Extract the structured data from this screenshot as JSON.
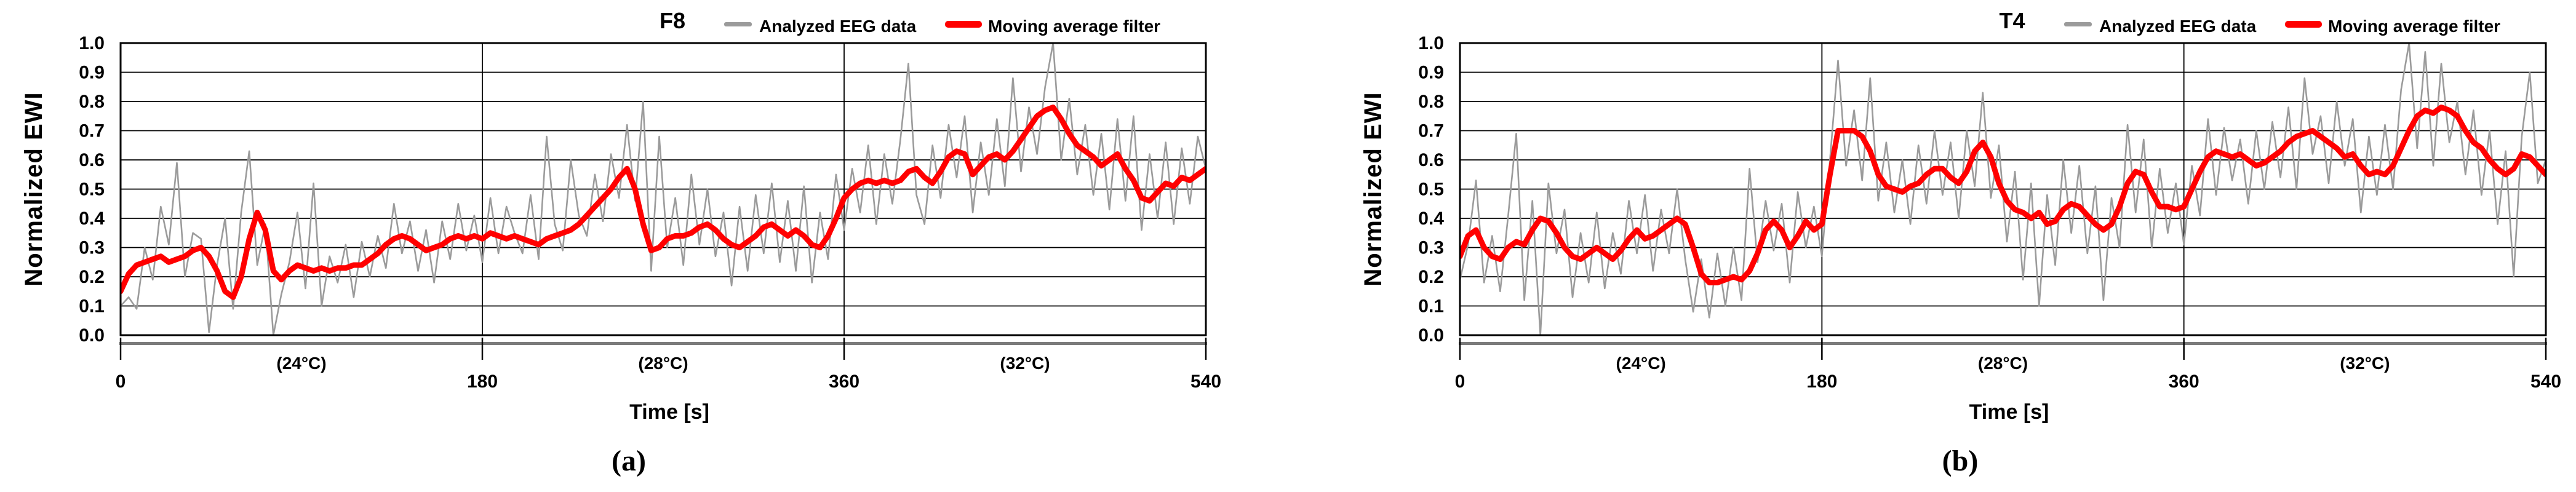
{
  "page": {
    "background": "#ffffff",
    "figure_type": "dual-panel-eeg-chart"
  },
  "colors": {
    "eeg_gray": "#9b9b9b",
    "moving_avg_red": "#ff0000",
    "grid": "#000000",
    "axis_band": "#7b7b7b",
    "text": "#000000"
  },
  "chart_data": [
    {
      "id": "f8",
      "type": "line",
      "title": "F8",
      "panel_caption": "(a)",
      "x_label": "Time [s]",
      "y_label": "Normalized EWI",
      "xlim": [
        0,
        540
      ],
      "ylim": [
        0.0,
        1.0
      ],
      "x_ticks": [
        0,
        180,
        360,
        540
      ],
      "y_ticks": [
        "1.0",
        "0.9",
        "0.8",
        "0.7",
        "0.6",
        "0.5",
        "0.4",
        "0.3",
        "0.2",
        "0.1",
        "0.0"
      ],
      "grid": {
        "h_step": 0.1,
        "v_lines": [
          180,
          360
        ],
        "on": true
      },
      "segment_annotations": [
        {
          "t": 90,
          "label": "(24°C)"
        },
        {
          "t": 270,
          "label": "(28°C)"
        },
        {
          "t": 450,
          "label": "(32°C)"
        }
      ],
      "legend": {
        "position": "top-right",
        "entries": [
          {
            "name": "Analyzed EEG data",
            "color": "#9b9b9b"
          },
          {
            "name": "Moving average filter",
            "color": "#ff0000"
          }
        ]
      },
      "x": {
        "start": 0,
        "step": 4,
        "count": 136
      },
      "series": [
        {
          "name": "Analyzed EEG data",
          "color": "#9b9b9b",
          "width": 2.6,
          "values": [
            0.1,
            0.13,
            0.09,
            0.3,
            0.19,
            0.44,
            0.31,
            0.59,
            0.2,
            0.35,
            0.33,
            0.01,
            0.24,
            0.4,
            0.09,
            0.42,
            0.63,
            0.24,
            0.38,
            0.0,
            0.14,
            0.25,
            0.42,
            0.16,
            0.52,
            0.1,
            0.27,
            0.18,
            0.31,
            0.13,
            0.32,
            0.2,
            0.34,
            0.23,
            0.45,
            0.28,
            0.39,
            0.22,
            0.36,
            0.18,
            0.39,
            0.26,
            0.45,
            0.29,
            0.41,
            0.25,
            0.47,
            0.28,
            0.44,
            0.35,
            0.28,
            0.48,
            0.26,
            0.68,
            0.38,
            0.29,
            0.6,
            0.41,
            0.34,
            0.55,
            0.39,
            0.62,
            0.47,
            0.72,
            0.46,
            0.8,
            0.22,
            0.68,
            0.3,
            0.47,
            0.24,
            0.55,
            0.31,
            0.5,
            0.27,
            0.42,
            0.17,
            0.44,
            0.22,
            0.48,
            0.28,
            0.52,
            0.25,
            0.46,
            0.22,
            0.51,
            0.18,
            0.42,
            0.26,
            0.55,
            0.36,
            0.57,
            0.42,
            0.65,
            0.38,
            0.62,
            0.45,
            0.67,
            0.93,
            0.48,
            0.38,
            0.65,
            0.47,
            0.72,
            0.54,
            0.75,
            0.42,
            0.66,
            0.48,
            0.74,
            0.51,
            0.88,
            0.56,
            0.78,
            0.62,
            0.85,
            1.0,
            0.6,
            0.81,
            0.55,
            0.72,
            0.48,
            0.69,
            0.43,
            0.74,
            0.46,
            0.75,
            0.36,
            0.62,
            0.4,
            0.66,
            0.38,
            0.64,
            0.45,
            0.68,
            0.57
          ]
        },
        {
          "name": "Moving average filter",
          "color": "#ff0000",
          "width": 9,
          "values": [
            0.15,
            0.21,
            0.24,
            0.25,
            0.26,
            0.27,
            0.25,
            0.26,
            0.27,
            0.29,
            0.3,
            0.27,
            0.22,
            0.15,
            0.13,
            0.2,
            0.33,
            0.42,
            0.36,
            0.22,
            0.19,
            0.22,
            0.24,
            0.23,
            0.22,
            0.23,
            0.22,
            0.23,
            0.23,
            0.24,
            0.24,
            0.26,
            0.28,
            0.31,
            0.33,
            0.34,
            0.33,
            0.31,
            0.29,
            0.3,
            0.31,
            0.33,
            0.34,
            0.33,
            0.34,
            0.33,
            0.35,
            0.34,
            0.33,
            0.34,
            0.33,
            0.32,
            0.31,
            0.33,
            0.34,
            0.35,
            0.36,
            0.38,
            0.41,
            0.44,
            0.47,
            0.5,
            0.54,
            0.57,
            0.5,
            0.38,
            0.29,
            0.3,
            0.33,
            0.34,
            0.34,
            0.35,
            0.37,
            0.38,
            0.36,
            0.33,
            0.31,
            0.3,
            0.32,
            0.34,
            0.37,
            0.38,
            0.36,
            0.34,
            0.36,
            0.34,
            0.31,
            0.3,
            0.34,
            0.4,
            0.47,
            0.5,
            0.52,
            0.53,
            0.52,
            0.53,
            0.52,
            0.53,
            0.56,
            0.57,
            0.54,
            0.52,
            0.56,
            0.61,
            0.63,
            0.62,
            0.55,
            0.58,
            0.61,
            0.62,
            0.6,
            0.63,
            0.67,
            0.71,
            0.75,
            0.77,
            0.78,
            0.74,
            0.69,
            0.65,
            0.63,
            0.61,
            0.58,
            0.6,
            0.62,
            0.57,
            0.53,
            0.47,
            0.46,
            0.49,
            0.52,
            0.51,
            0.54,
            0.53,
            0.55,
            0.57
          ]
        }
      ]
    },
    {
      "id": "t4",
      "type": "line",
      "title": "T4",
      "panel_caption": "(b)",
      "x_label": "Time [s]",
      "y_label": "Normalized EWI",
      "xlim": [
        0,
        540
      ],
      "ylim": [
        0.0,
        1.0
      ],
      "x_ticks": [
        0,
        180,
        360,
        540
      ],
      "y_ticks": [
        "1.0",
        "0.9",
        "0.8",
        "0.7",
        "0.6",
        "0.5",
        "0.4",
        "0.3",
        "0.2",
        "0.1",
        "0.0"
      ],
      "grid": {
        "h_step": 0.1,
        "v_lines": [
          180,
          360
        ],
        "on": true
      },
      "segment_annotations": [
        {
          "t": 90,
          "label": "(24°C)"
        },
        {
          "t": 270,
          "label": "(28°C)"
        },
        {
          "t": 450,
          "label": "(32°C)"
        }
      ],
      "legend": {
        "position": "top-right",
        "entries": [
          {
            "name": "Analyzed EEG data",
            "color": "#9b9b9b"
          },
          {
            "name": "Moving average filter",
            "color": "#ff0000"
          }
        ]
      },
      "x": {
        "start": 0,
        "step": 4,
        "count": 136
      },
      "series": [
        {
          "name": "Analyzed EEG data",
          "color": "#9b9b9b",
          "width": 2.6,
          "values": [
            0.19,
            0.31,
            0.53,
            0.18,
            0.34,
            0.15,
            0.41,
            0.69,
            0.12,
            0.46,
            0.0,
            0.52,
            0.28,
            0.43,
            0.13,
            0.35,
            0.18,
            0.42,
            0.16,
            0.35,
            0.21,
            0.46,
            0.28,
            0.48,
            0.22,
            0.43,
            0.28,
            0.5,
            0.26,
            0.08,
            0.26,
            0.06,
            0.28,
            0.1,
            0.3,
            0.12,
            0.57,
            0.25,
            0.46,
            0.29,
            0.45,
            0.18,
            0.49,
            0.3,
            0.44,
            0.27,
            0.6,
            0.94,
            0.58,
            0.77,
            0.53,
            0.88,
            0.46,
            0.66,
            0.42,
            0.6,
            0.38,
            0.65,
            0.45,
            0.7,
            0.48,
            0.66,
            0.4,
            0.7,
            0.51,
            0.83,
            0.47,
            0.65,
            0.32,
            0.56,
            0.19,
            0.52,
            0.1,
            0.48,
            0.24,
            0.6,
            0.35,
            0.58,
            0.28,
            0.51,
            0.12,
            0.47,
            0.3,
            0.72,
            0.42,
            0.67,
            0.3,
            0.57,
            0.35,
            0.52,
            0.31,
            0.58,
            0.41,
            0.74,
            0.48,
            0.71,
            0.53,
            0.67,
            0.45,
            0.7,
            0.5,
            0.73,
            0.54,
            0.78,
            0.5,
            0.88,
            0.62,
            0.75,
            0.52,
            0.8,
            0.58,
            0.74,
            0.42,
            0.68,
            0.48,
            0.72,
            0.5,
            0.84,
            1.0,
            0.64,
            0.97,
            0.58,
            0.93,
            0.66,
            0.8,
            0.55,
            0.77,
            0.48,
            0.7,
            0.38,
            0.63,
            0.2,
            0.68,
            0.9,
            0.52,
            0.6
          ]
        },
        {
          "name": "Moving average filter",
          "color": "#ff0000",
          "width": 9,
          "values": [
            0.27,
            0.34,
            0.36,
            0.3,
            0.27,
            0.26,
            0.3,
            0.32,
            0.31,
            0.36,
            0.4,
            0.39,
            0.35,
            0.3,
            0.27,
            0.26,
            0.28,
            0.3,
            0.28,
            0.26,
            0.29,
            0.33,
            0.36,
            0.33,
            0.34,
            0.36,
            0.38,
            0.4,
            0.38,
            0.3,
            0.21,
            0.18,
            0.18,
            0.19,
            0.2,
            0.19,
            0.22,
            0.28,
            0.36,
            0.39,
            0.36,
            0.3,
            0.34,
            0.39,
            0.36,
            0.38,
            0.55,
            0.7,
            0.7,
            0.7,
            0.68,
            0.63,
            0.55,
            0.51,
            0.5,
            0.49,
            0.51,
            0.52,
            0.55,
            0.57,
            0.57,
            0.54,
            0.52,
            0.56,
            0.63,
            0.66,
            0.61,
            0.52,
            0.46,
            0.43,
            0.42,
            0.4,
            0.42,
            0.38,
            0.39,
            0.43,
            0.45,
            0.44,
            0.41,
            0.38,
            0.36,
            0.38,
            0.44,
            0.52,
            0.56,
            0.55,
            0.49,
            0.44,
            0.44,
            0.43,
            0.44,
            0.5,
            0.56,
            0.61,
            0.63,
            0.62,
            0.61,
            0.62,
            0.6,
            0.58,
            0.59,
            0.61,
            0.63,
            0.66,
            0.68,
            0.69,
            0.7,
            0.68,
            0.66,
            0.64,
            0.61,
            0.62,
            0.58,
            0.55,
            0.56,
            0.55,
            0.58,
            0.64,
            0.7,
            0.75,
            0.77,
            0.76,
            0.78,
            0.77,
            0.75,
            0.7,
            0.66,
            0.64,
            0.6,
            0.57,
            0.55,
            0.57,
            0.62,
            0.61,
            0.58,
            0.55
          ]
        }
      ]
    }
  ]
}
